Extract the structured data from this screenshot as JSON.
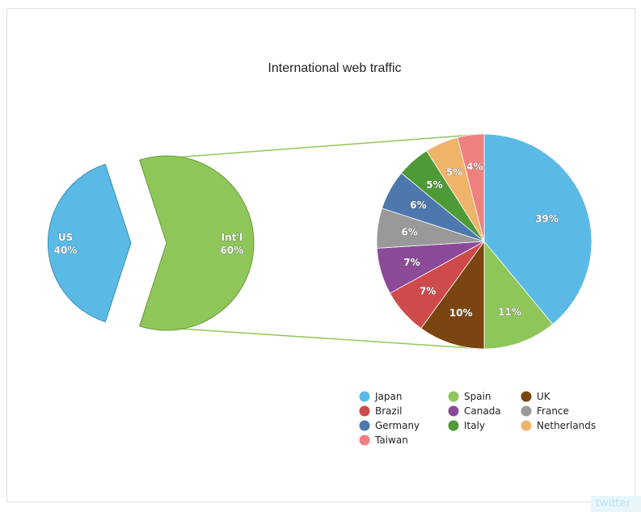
{
  "chart_data": {
    "type": "pie",
    "title": "International web traffic",
    "primary": {
      "slices": [
        {
          "label": "US",
          "value": 40,
          "value_label": "40%",
          "color": "#5bb9e6"
        },
        {
          "label": "Int'l",
          "value": 60,
          "value_label": "60%",
          "color": "#8fc65a"
        }
      ]
    },
    "breakdown": {
      "of": "Int'l",
      "slices": [
        {
          "label": "Japan",
          "value": 39,
          "value_label": "39%",
          "color": "#5bb9e6"
        },
        {
          "label": "Spain",
          "value": 11,
          "value_label": "11%",
          "color": "#8fc65a"
        },
        {
          "label": "UK",
          "value": 10,
          "value_label": "10%",
          "color": "#7a4510"
        },
        {
          "label": "Brazil",
          "value": 7,
          "value_label": "7%",
          "color": "#cf4a4a"
        },
        {
          "label": "Canada",
          "value": 7,
          "value_label": "7%",
          "color": "#8a4a98"
        },
        {
          "label": "France",
          "value": 6,
          "value_label": "6%",
          "color": "#999999"
        },
        {
          "label": "Germany",
          "value": 6,
          "value_label": "6%",
          "color": "#4d78ad"
        },
        {
          "label": "Italy",
          "value": 5,
          "value_label": "5%",
          "color": "#4e9a36"
        },
        {
          "label": "Netherlands",
          "value": 5,
          "value_label": "5%",
          "color": "#efb46a"
        },
        {
          "label": "Taiwan",
          "value": 4,
          "value_label": "4%",
          "color": "#f08080"
        }
      ]
    },
    "legend": {
      "placement": "bottom-right",
      "columns": 3,
      "entries": [
        "Japan",
        "Spain",
        "UK",
        "Brazil",
        "Canada",
        "France",
        "Germany",
        "Italy",
        "Netherlands",
        "Taiwan"
      ]
    },
    "connector_color": "#8fc65a"
  },
  "badge": {
    "text": "twitter",
    "icon": "twitter-badge"
  }
}
